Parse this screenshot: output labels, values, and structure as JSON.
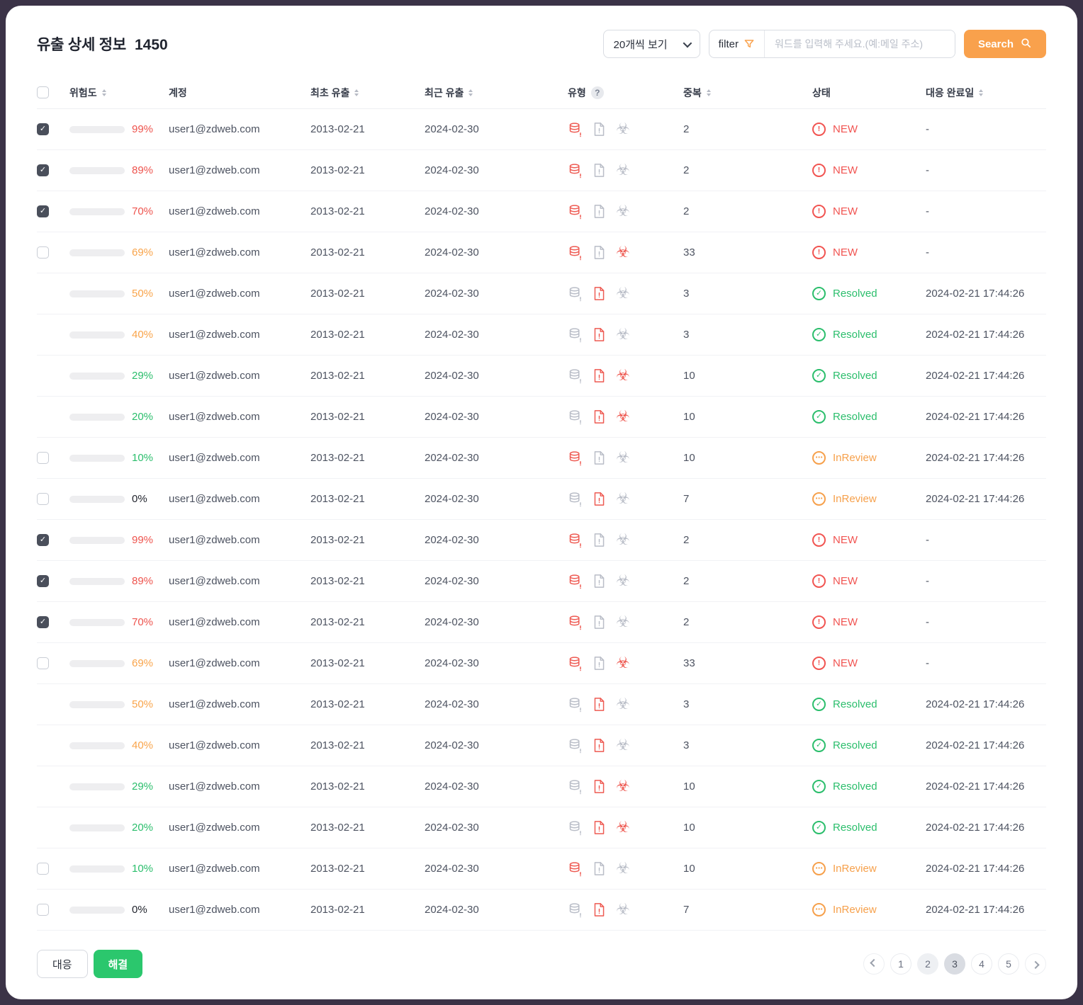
{
  "header": {
    "title": "유출 상세 정보",
    "count": "1450",
    "page_size_select": "20개씩 보기",
    "filter_label": "filter",
    "search_placeholder": "워드를 입력해 주세요.(예:메일 주소)",
    "search_button": "Search"
  },
  "table": {
    "help_badge": "?",
    "columns": [
      {
        "label": "위험도"
      },
      {
        "label": "계정"
      },
      {
        "label": "최초 유출"
      },
      {
        "label": "최근 유출"
      },
      {
        "label": "유형"
      },
      {
        "label": "중복"
      },
      {
        "label": "상태"
      },
      {
        "label": "대응 완료일"
      }
    ],
    "status_meta": {
      "NEW": {
        "glyph": "!",
        "class": "new"
      },
      "Resolved": {
        "glyph": "✓",
        "class": "resolved"
      },
      "InReview": {
        "glyph": "⋯",
        "class": "inreview"
      }
    },
    "rows": [
      {
        "checkbox": "checked",
        "risk": 99,
        "level": "red",
        "account": "user1@zdweb.com",
        "first_leak": "2013-02-21",
        "recent_leak": "2024-02-30",
        "types": [
          "db"
        ],
        "dup": "2",
        "status": "NEW",
        "date": "-"
      },
      {
        "checkbox": "checked",
        "risk": 89,
        "level": "red",
        "account": "user1@zdweb.com",
        "first_leak": "2013-02-21",
        "recent_leak": "2024-02-30",
        "types": [
          "db"
        ],
        "dup": "2",
        "status": "NEW",
        "date": "-"
      },
      {
        "checkbox": "checked",
        "risk": 70,
        "level": "red",
        "account": "user1@zdweb.com",
        "first_leak": "2013-02-21",
        "recent_leak": "2024-02-30",
        "types": [
          "db"
        ],
        "dup": "2",
        "status": "NEW",
        "date": "-"
      },
      {
        "checkbox": "unchecked",
        "risk": 69,
        "level": "orange",
        "account": "user1@zdweb.com",
        "first_leak": "2013-02-21",
        "recent_leak": "2024-02-30",
        "types": [
          "db",
          "bio"
        ],
        "dup": "33",
        "status": "NEW",
        "date": "-"
      },
      {
        "checkbox": "none",
        "risk": 50,
        "level": "orange",
        "account": "user1@zdweb.com",
        "first_leak": "2013-02-21",
        "recent_leak": "2024-02-30",
        "types": [
          "file"
        ],
        "dup": "3",
        "status": "Resolved",
        "date": "2024-02-21 17:44:26"
      },
      {
        "checkbox": "none",
        "risk": 40,
        "level": "orange",
        "account": "user1@zdweb.com",
        "first_leak": "2013-02-21",
        "recent_leak": "2024-02-30",
        "types": [
          "file"
        ],
        "dup": "3",
        "status": "Resolved",
        "date": "2024-02-21 17:44:26"
      },
      {
        "checkbox": "none",
        "risk": 29,
        "level": "green",
        "account": "user1@zdweb.com",
        "first_leak": "2013-02-21",
        "recent_leak": "2024-02-30",
        "types": [
          "file",
          "bio"
        ],
        "dup": "10",
        "status": "Resolved",
        "date": "2024-02-21 17:44:26"
      },
      {
        "checkbox": "none",
        "risk": 20,
        "level": "green",
        "account": "user1@zdweb.com",
        "first_leak": "2013-02-21",
        "recent_leak": "2024-02-30",
        "types": [
          "file",
          "bio"
        ],
        "dup": "10",
        "status": "Resolved",
        "date": "2024-02-21 17:44:26"
      },
      {
        "checkbox": "unchecked",
        "risk": 10,
        "level": "green",
        "account": "user1@zdweb.com",
        "first_leak": "2013-02-21",
        "recent_leak": "2024-02-30",
        "types": [
          "db"
        ],
        "dup": "10",
        "status": "InReview",
        "date": "2024-02-21 17:44:26"
      },
      {
        "checkbox": "unchecked",
        "risk": 0,
        "level": "gray",
        "account": "user1@zdweb.com",
        "first_leak": "2013-02-21",
        "recent_leak": "2024-02-30",
        "types": [
          "file"
        ],
        "dup": "7",
        "status": "InReview",
        "date": "2024-02-21 17:44:26"
      },
      {
        "checkbox": "checked",
        "risk": 99,
        "level": "red",
        "account": "user1@zdweb.com",
        "first_leak": "2013-02-21",
        "recent_leak": "2024-02-30",
        "types": [
          "db"
        ],
        "dup": "2",
        "status": "NEW",
        "date": "-"
      },
      {
        "checkbox": "checked",
        "risk": 89,
        "level": "red",
        "account": "user1@zdweb.com",
        "first_leak": "2013-02-21",
        "recent_leak": "2024-02-30",
        "types": [
          "db"
        ],
        "dup": "2",
        "status": "NEW",
        "date": "-"
      },
      {
        "checkbox": "checked",
        "risk": 70,
        "level": "red",
        "account": "user1@zdweb.com",
        "first_leak": "2013-02-21",
        "recent_leak": "2024-02-30",
        "types": [
          "db"
        ],
        "dup": "2",
        "status": "NEW",
        "date": "-"
      },
      {
        "checkbox": "unchecked",
        "risk": 69,
        "level": "orange",
        "account": "user1@zdweb.com",
        "first_leak": "2013-02-21",
        "recent_leak": "2024-02-30",
        "types": [
          "db",
          "bio"
        ],
        "dup": "33",
        "status": "NEW",
        "date": "-"
      },
      {
        "checkbox": "none",
        "risk": 50,
        "level": "orange",
        "account": "user1@zdweb.com",
        "first_leak": "2013-02-21",
        "recent_leak": "2024-02-30",
        "types": [
          "file"
        ],
        "dup": "3",
        "status": "Resolved",
        "date": "2024-02-21 17:44:26"
      },
      {
        "checkbox": "none",
        "risk": 40,
        "level": "orange",
        "account": "user1@zdweb.com",
        "first_leak": "2013-02-21",
        "recent_leak": "2024-02-30",
        "types": [
          "file"
        ],
        "dup": "3",
        "status": "Resolved",
        "date": "2024-02-21 17:44:26"
      },
      {
        "checkbox": "none",
        "risk": 29,
        "level": "green",
        "account": "user1@zdweb.com",
        "first_leak": "2013-02-21",
        "recent_leak": "2024-02-30",
        "types": [
          "file",
          "bio"
        ],
        "dup": "10",
        "status": "Resolved",
        "date": "2024-02-21 17:44:26"
      },
      {
        "checkbox": "none",
        "risk": 20,
        "level": "green",
        "account": "user1@zdweb.com",
        "first_leak": "2013-02-21",
        "recent_leak": "2024-02-30",
        "types": [
          "file",
          "bio"
        ],
        "dup": "10",
        "status": "Resolved",
        "date": "2024-02-21 17:44:26"
      },
      {
        "checkbox": "unchecked",
        "risk": 10,
        "level": "green",
        "account": "user1@zdweb.com",
        "first_leak": "2013-02-21",
        "recent_leak": "2024-02-30",
        "types": [
          "db"
        ],
        "dup": "10",
        "status": "InReview",
        "date": "2024-02-21 17:44:26"
      },
      {
        "checkbox": "unchecked",
        "risk": 0,
        "level": "gray",
        "account": "user1@zdweb.com",
        "first_leak": "2013-02-21",
        "recent_leak": "2024-02-30",
        "types": [
          "file"
        ],
        "dup": "7",
        "status": "InReview",
        "date": "2024-02-21 17:44:26"
      }
    ]
  },
  "footer": {
    "respond_button": "대응",
    "resolve_button": "해결",
    "pagination": {
      "pages": [
        {
          "label": "1",
          "style": "plain"
        },
        {
          "label": "2",
          "style": "shaded"
        },
        {
          "label": "3",
          "style": "active"
        },
        {
          "label": "4",
          "style": "plain"
        },
        {
          "label": "5",
          "style": "plain"
        }
      ]
    }
  },
  "colors": {
    "risk_red": "#ee544e",
    "risk_orange": "#f9a44a",
    "risk_green": "#2bc76d",
    "status_new": "#f15451",
    "status_resolved": "#2bbe6c",
    "status_inreview": "#f6a04b",
    "accent_orange": "#f9a14c",
    "frame": "#3b3347"
  }
}
